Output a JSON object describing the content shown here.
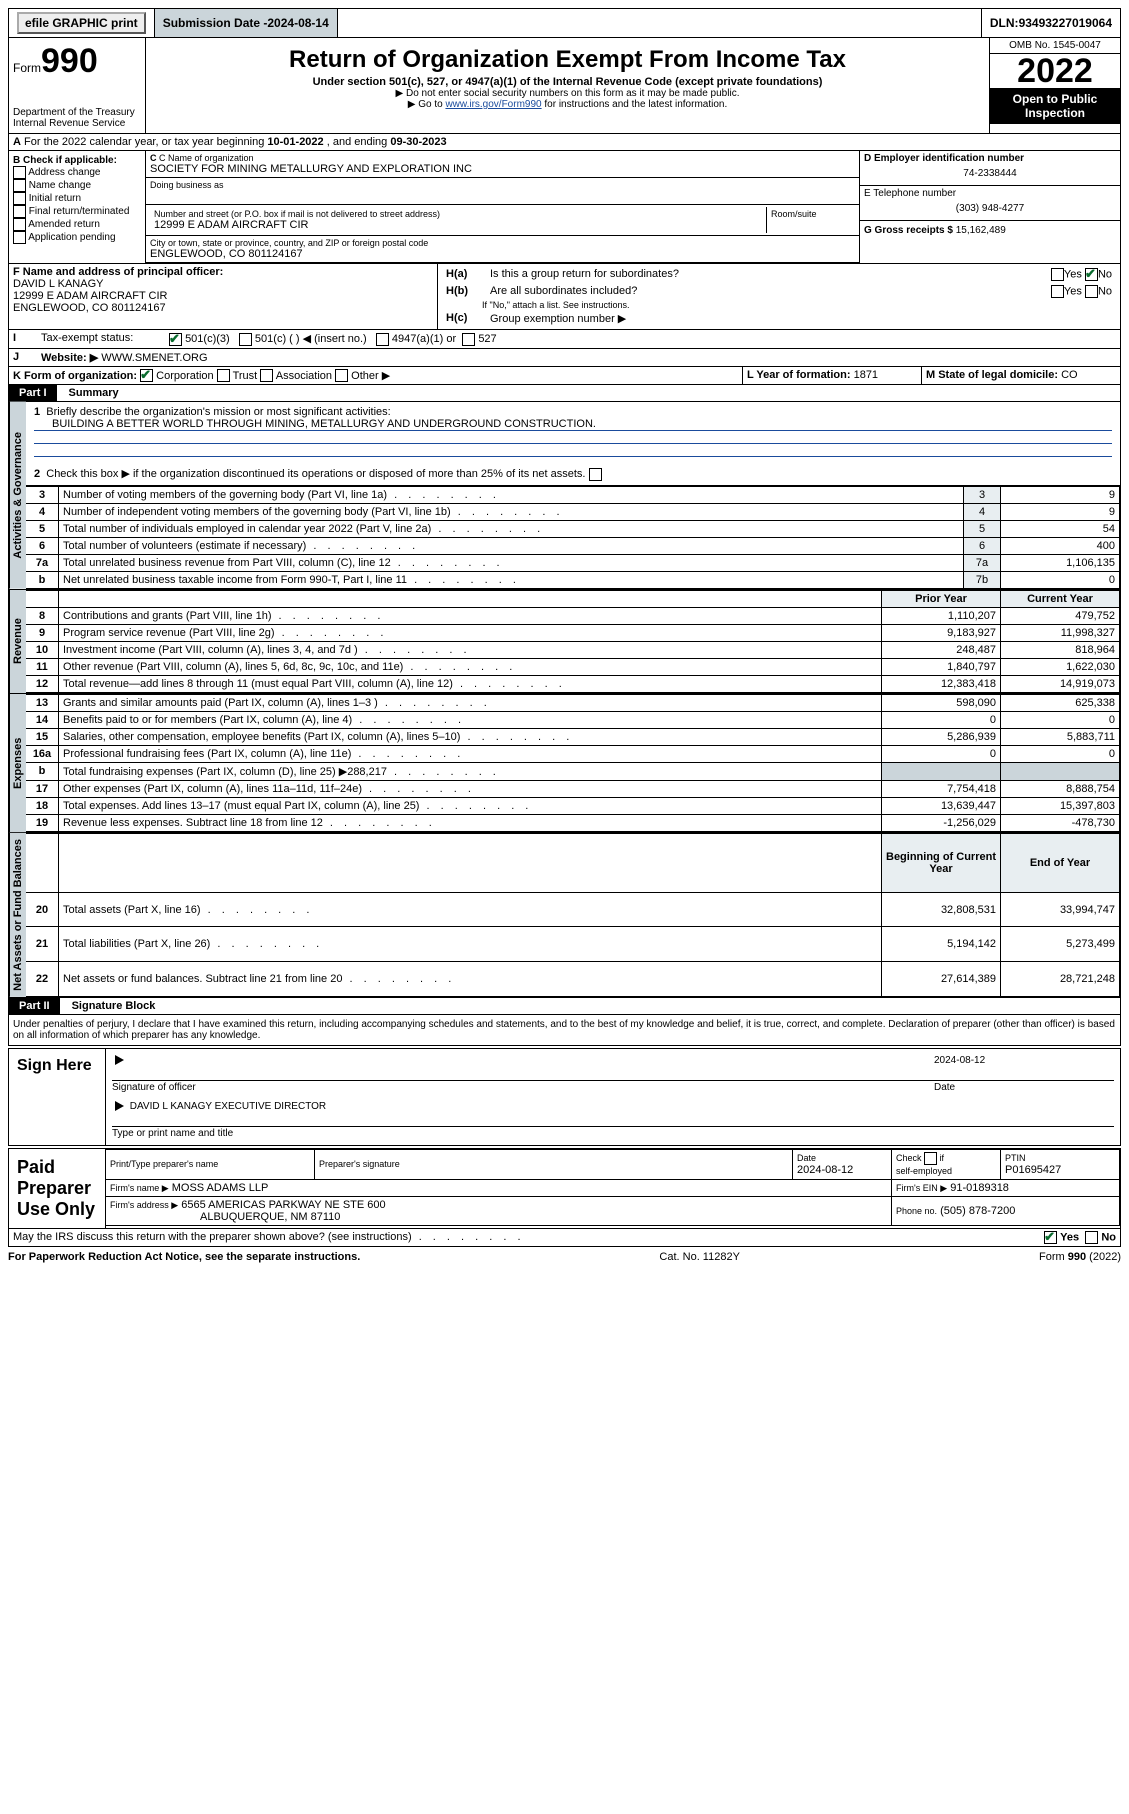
{
  "topbar": {
    "efile": "efile GRAPHIC print",
    "submission_label": "Submission Date - ",
    "submission_date": "2024-08-14",
    "dln_label": "DLN: ",
    "dln": "93493227019064"
  },
  "header": {
    "form_word": "Form",
    "form_no": "990",
    "dept": "Department of the Treasury",
    "irs": "Internal Revenue Service",
    "title": "Return of Organization Exempt From Income Tax",
    "subtitle": "Under section 501(c), 527, or 4947(a)(1) of the Internal Revenue Code (except private foundations)",
    "note1": "▶ Do not enter social security numbers on this form as it may be made public.",
    "note2_pre": "▶ Go to ",
    "note2_link": "www.irs.gov/Form990",
    "note2_post": " for instructions and the latest information.",
    "omb": "OMB No. 1545-0047",
    "year": "2022",
    "open1": "Open to Public",
    "open2": "Inspection"
  },
  "lineA": {
    "pre": "For the 2022 calendar year, or tax year beginning ",
    "begin": "10-01-2022",
    "mid": " , and ending ",
    "end": "09-30-2023"
  },
  "boxB": {
    "title": "B Check if applicable:",
    "items": [
      "Address change",
      "Name change",
      "Initial return",
      "Final return/terminated",
      "Amended return",
      "Application pending"
    ]
  },
  "boxC": {
    "name_label": "C Name of organization",
    "name": "SOCIETY FOR MINING METALLURGY AND EXPLORATION INC",
    "dba_label": "Doing business as",
    "street_label": "Number and street (or P.O. box if mail is not delivered to street address)",
    "room_label": "Room/suite",
    "street": "12999 E ADAM AIRCRAFT CIR",
    "city_label": "City or town, state or province, country, and ZIP or foreign postal code",
    "city": "ENGLEWOOD, CO  801124167"
  },
  "boxD": {
    "label": "D Employer identification number",
    "value": "74-2338444"
  },
  "boxE": {
    "label": "E Telephone number",
    "value": "(303) 948-4277"
  },
  "boxG": {
    "label": "G Gross receipts $",
    "value": "15,162,489"
  },
  "boxF": {
    "label": "F  Name and address of principal officer:",
    "name": "DAVID L KANAGY",
    "addr1": "12999 E ADAM AIRCRAFT CIR",
    "addr2": "ENGLEWOOD, CO  801124167"
  },
  "boxH": {
    "a": "Is this a group return for subordinates?",
    "b": "Are all subordinates included?",
    "bnote": "If \"No,\" attach a list. See instructions.",
    "c": "Group exemption number ▶",
    "yes": "Yes",
    "no": "No"
  },
  "lineI": {
    "label": "Tax-exempt status:",
    "c3": "501(c)(3)",
    "c": "501(c) (  ) ◀ (insert no.)",
    "a1": "4947(a)(1) or",
    "s527": "527"
  },
  "lineJ": {
    "label": "Website: ▶",
    "value": "WWW.SMENET.ORG"
  },
  "lineK": {
    "label": "K Form of organization:",
    "corp": "Corporation",
    "trust": "Trust",
    "assoc": "Association",
    "other": "Other ▶"
  },
  "lineL": {
    "label": "L Year of formation:",
    "value": "1871"
  },
  "lineM": {
    "label": "M State of legal domicile:",
    "value": "CO"
  },
  "part1": {
    "hdr": "Part I",
    "title": "Summary"
  },
  "summary": {
    "l1_label": "Briefly describe the organization's mission or most significant activities:",
    "l1_text": "BUILDING A BETTER WORLD THROUGH MINING, METALLURGY AND UNDERGROUND CONSTRUCTION.",
    "l2": "Check this box ▶  if the organization discontinued its operations or disposed of more than 25% of its net assets.",
    "rows_act": [
      {
        "n": "3",
        "t": "Number of voting members of the governing body (Part VI, line 1a)",
        "k": "3",
        "v": "9"
      },
      {
        "n": "4",
        "t": "Number of independent voting members of the governing body (Part VI, line 1b)",
        "k": "4",
        "v": "9"
      },
      {
        "n": "5",
        "t": "Total number of individuals employed in calendar year 2022 (Part V, line 2a)",
        "k": "5",
        "v": "54"
      },
      {
        "n": "6",
        "t": "Total number of volunteers (estimate if necessary)",
        "k": "6",
        "v": "400"
      },
      {
        "n": "7a",
        "t": "Total unrelated business revenue from Part VIII, column (C), line 12",
        "k": "7a",
        "v": "1,106,135"
      },
      {
        "n": "b",
        "t": "Net unrelated business taxable income from Form 990-T, Part I, line 11",
        "k": "7b",
        "v": "0"
      }
    ],
    "col_prior": "Prior Year",
    "col_curr": "Current Year",
    "rev": [
      {
        "n": "8",
        "t": "Contributions and grants (Part VIII, line 1h)",
        "p": "1,110,207",
        "c": "479,752"
      },
      {
        "n": "9",
        "t": "Program service revenue (Part VIII, line 2g)",
        "p": "9,183,927",
        "c": "11,998,327"
      },
      {
        "n": "10",
        "t": "Investment income (Part VIII, column (A), lines 3, 4, and 7d )",
        "p": "248,487",
        "c": "818,964"
      },
      {
        "n": "11",
        "t": "Other revenue (Part VIII, column (A), lines 5, 6d, 8c, 9c, 10c, and 11e)",
        "p": "1,840,797",
        "c": "1,622,030"
      },
      {
        "n": "12",
        "t": "Total revenue—add lines 8 through 11 (must equal Part VIII, column (A), line 12)",
        "p": "12,383,418",
        "c": "14,919,073"
      }
    ],
    "exp": [
      {
        "n": "13",
        "t": "Grants and similar amounts paid (Part IX, column (A), lines 1–3 )",
        "p": "598,090",
        "c": "625,338"
      },
      {
        "n": "14",
        "t": "Benefits paid to or for members (Part IX, column (A), line 4)",
        "p": "0",
        "c": "0"
      },
      {
        "n": "15",
        "t": "Salaries, other compensation, employee benefits (Part IX, column (A), lines 5–10)",
        "p": "5,286,939",
        "c": "5,883,711"
      },
      {
        "n": "16a",
        "t": "Professional fundraising fees (Part IX, column (A), line 11e)",
        "p": "0",
        "c": "0"
      },
      {
        "n": "b",
        "t": "Total fundraising expenses (Part IX, column (D), line 25) ▶288,217",
        "p": "",
        "c": ""
      },
      {
        "n": "17",
        "t": "Other expenses (Part IX, column (A), lines 11a–11d, 11f–24e)",
        "p": "7,754,418",
        "c": "8,888,754"
      },
      {
        "n": "18",
        "t": "Total expenses. Add lines 13–17 (must equal Part IX, column (A), line 25)",
        "p": "13,639,447",
        "c": "15,397,803"
      },
      {
        "n": "19",
        "t": "Revenue less expenses. Subtract line 18 from line 12",
        "p": "-1,256,029",
        "c": "-478,730"
      }
    ],
    "col_bog": "Beginning of Current Year",
    "col_eoy": "End of Year",
    "net": [
      {
        "n": "20",
        "t": "Total assets (Part X, line 16)",
        "p": "32,808,531",
        "c": "33,994,747"
      },
      {
        "n": "21",
        "t": "Total liabilities (Part X, line 26)",
        "p": "5,194,142",
        "c": "5,273,499"
      },
      {
        "n": "22",
        "t": "Net assets or fund balances. Subtract line 21 from line 20",
        "p": "27,614,389",
        "c": "28,721,248"
      }
    ],
    "tab_act": "Activities & Governance",
    "tab_rev": "Revenue",
    "tab_exp": "Expenses",
    "tab_net": "Net Assets or Fund Balances"
  },
  "part2": {
    "hdr": "Part II",
    "title": "Signature Block",
    "decl": "Under penalties of perjury, I declare that I have examined this return, including accompanying schedules and statements, and to the best of my knowledge and belief, it is true, correct, and complete. Declaration of preparer (other than officer) is based on all information of which preparer has any knowledge."
  },
  "sign": {
    "here": "Sign Here",
    "sig_label": "Signature of officer",
    "date_label": "Date",
    "date": "2024-08-12",
    "name": "DAVID L KANAGY  EXECUTIVE DIRECTOR",
    "name_label": "Type or print name and title"
  },
  "paid": {
    "title": "Paid Preparer Use Only",
    "c1": "Print/Type preparer's name",
    "c2": "Preparer's signature",
    "c3": "Date",
    "c3v": "2024-08-12",
    "c4": "Check          if self-employed",
    "c5": "PTIN",
    "ptin": "P01695427",
    "firm_label": "Firm's name   ▶",
    "firm": "MOSS ADAMS LLP",
    "ein_label": "Firm's EIN ▶",
    "ein": "91-0189318",
    "addr_label": "Firm's address ▶",
    "addr1": "6565 AMERICAS PARKWAY NE STE 600",
    "addr2": "ALBUQUERQUE, NM  87110",
    "phone_label": "Phone no.",
    "phone": "(505) 878-7200"
  },
  "bottom": {
    "q": "May the IRS discuss this return with the preparer shown above? (see instructions)",
    "yes": "Yes",
    "no": "No",
    "pra": "For Paperwork Reduction Act Notice, see the separate instructions.",
    "cat": "Cat. No. 11282Y",
    "form": "Form 990 (2022)"
  }
}
